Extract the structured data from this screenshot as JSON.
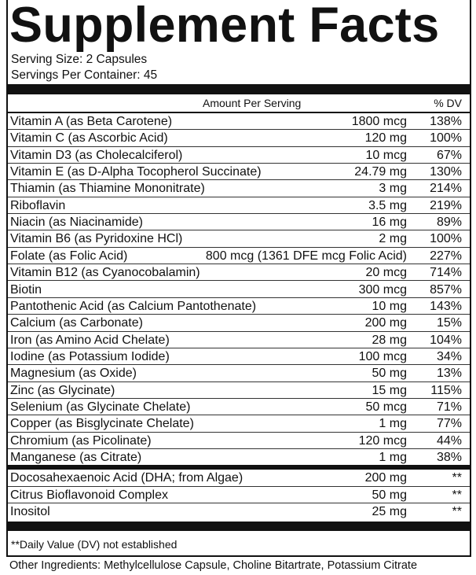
{
  "header": {
    "title": "Supplement Facts",
    "serving_size": "Serving Size: 2 Capsules",
    "servings_per_container": "Servings Per Container: 45"
  },
  "table": {
    "columns": [
      "Amount Per Serving",
      "% DV"
    ],
    "rows": [
      [
        "Vitamin A (as Beta Carotene)",
        "1800 mcg",
        "138%"
      ],
      [
        "Vitamin C (as Ascorbic Acid)",
        "120 mg",
        "100%"
      ],
      [
        "Vitamin D3 (as Cholecalciferol)",
        "10 mcg",
        "67%"
      ],
      [
        "Vitamin E (as D-Alpha Tocopherol Succinate)",
        "24.79 mg",
        "130%"
      ],
      [
        "Thiamin (as Thiamine Mononitrate)",
        "3 mg",
        "214%"
      ],
      [
        "Riboflavin",
        "3.5 mg",
        "219%"
      ],
      [
        "Niacin (as Niacinamide)",
        "16 mg",
        "89%"
      ],
      [
        "Vitamin B6 (as Pyridoxine HCl)",
        "2 mg",
        "100%"
      ],
      [
        "Folate (as Folic Acid)",
        "800 mcg (1361 DFE mcg Folic Acid)",
        "227%"
      ],
      [
        "Vitamin B12 (as Cyanocobalamin)",
        "20 mcg",
        "714%"
      ],
      [
        "Biotin",
        "300 mcg",
        "857%"
      ],
      [
        "Pantothenic Acid (as Calcium Pantothenate)",
        "10 mg",
        "143%"
      ],
      [
        "Calcium (as Carbonate)",
        "200 mg",
        "15%"
      ],
      [
        "Iron (as Amino Acid Chelate)",
        "28 mg",
        "104%"
      ],
      [
        "Iodine (as Potassium Iodide)",
        "100 mcg",
        "34%"
      ],
      [
        "Magnesium (as Oxide)",
        "50 mg",
        "13%"
      ],
      [
        "Zinc (as Glycinate)",
        "15 mg",
        "115%"
      ],
      [
        "Selenium (as Glycinate Chelate)",
        "50 mcg",
        "71%"
      ],
      [
        "Copper (as Bisglycinate Chelate)",
        "1 mg",
        "77%"
      ],
      [
        "Chromium (as Picolinate)",
        "120 mcg",
        "44%"
      ],
      [
        "Manganese (as Citrate)",
        "1 mg",
        "38%"
      ]
    ],
    "other_rows": [
      [
        "Docosahexaenoic Acid (DHA; from Algae)",
        "200 mg",
        "**"
      ],
      [
        "Citrus Bioflavonoid Complex",
        "50 mg",
        "**"
      ],
      [
        "Inositol",
        "25 mg",
        "**"
      ]
    ]
  },
  "footnote": "**Daily Value (DV) not established",
  "other_ingredients": "Other Ingredients: Methylcellulose Capsule, Choline Bitartrate, Potassium Citrate"
}
